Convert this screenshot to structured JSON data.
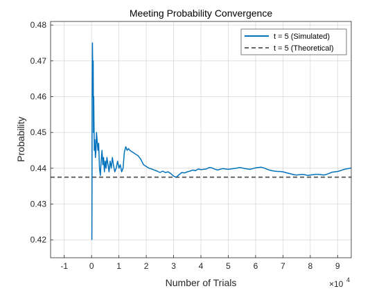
{
  "chart_data": {
    "type": "line",
    "title": "Meeting Probability Convergence",
    "xlabel": "Number of Trials",
    "ylabel": "Probability",
    "x_exponent_label": "×10",
    "x_exponent_power": "4",
    "xlim": [
      -15000,
      95000
    ],
    "ylim": [
      0.415,
      0.481
    ],
    "x_ticks": [
      -10000,
      0,
      10000,
      20000,
      30000,
      40000,
      50000,
      60000,
      70000,
      80000,
      90000
    ],
    "x_tick_labels": [
      "-1",
      "0",
      "1",
      "2",
      "3",
      "4",
      "5",
      "6",
      "7",
      "8",
      "9"
    ],
    "y_ticks": [
      0.42,
      0.43,
      0.44,
      0.45,
      0.46,
      0.47,
      0.48
    ],
    "y_tick_labels": [
      "0.42",
      "0.43",
      "0.44",
      "0.45",
      "0.46",
      "0.47",
      "0.48"
    ],
    "grid": true,
    "legend_position": "top-right",
    "series": [
      {
        "name": "t = 5 (Simulated)",
        "color": "#0072BD",
        "style": "solid",
        "x": [
          100,
          150,
          200,
          300,
          400,
          500,
          600,
          700,
          800,
          900,
          1000,
          1200,
          1400,
          1600,
          1800,
          2000,
          2300,
          2600,
          2900,
          3200,
          3500,
          3800,
          4100,
          4400,
          4700,
          5000,
          5300,
          5600,
          6000,
          6400,
          6800,
          7200,
          7600,
          8000,
          8500,
          9000,
          9500,
          10000,
          10500,
          11000,
          11500,
          12000,
          12500,
          13000,
          13500,
          14000,
          15000,
          16000,
          17000,
          18000,
          19000,
          20000,
          21000,
          22000,
          23000,
          24000,
          25000,
          26000,
          27000,
          28000,
          29000,
          30000,
          31000,
          32000,
          33000,
          34000,
          35000,
          36000,
          37000,
          38000,
          39000,
          40000,
          41000,
          42000,
          43000,
          44000,
          45000,
          46000,
          47000,
          48000,
          49000,
          50000,
          51000,
          52000,
          53000,
          54000,
          55000,
          56000,
          57000,
          58000,
          59000,
          60000,
          61000,
          62000,
          63000,
          64000,
          65000,
          66000,
          67000,
          68000,
          69000,
          70000,
          71000,
          72000,
          73000,
          74000,
          75000,
          76000,
          77000,
          78000,
          79000,
          80000,
          81000,
          82000,
          83000,
          84000,
          85000,
          86000,
          87000,
          88000,
          89000,
          90000,
          91000,
          92000,
          93000,
          94000,
          95000
        ],
        "y": [
          0.42,
          0.435,
          0.46,
          0.475,
          0.468,
          0.46,
          0.47,
          0.45,
          0.46,
          0.452,
          0.445,
          0.448,
          0.443,
          0.445,
          0.45,
          0.448,
          0.445,
          0.447,
          0.44,
          0.438,
          0.442,
          0.445,
          0.441,
          0.443,
          0.439,
          0.442,
          0.44,
          0.443,
          0.441,
          0.439,
          0.442,
          0.44,
          0.443,
          0.441,
          0.439,
          0.44,
          0.442,
          0.44,
          0.441,
          0.439,
          0.44,
          0.4445,
          0.446,
          0.445,
          0.4455,
          0.445,
          0.4445,
          0.444,
          0.4435,
          0.4425,
          0.441,
          0.4405,
          0.44,
          0.4398,
          0.4395,
          0.4392,
          0.4388,
          0.4392,
          0.4388,
          0.439,
          0.4385,
          0.4378,
          0.4375,
          0.4382,
          0.4388,
          0.4387,
          0.439,
          0.4392,
          0.4395,
          0.4393,
          0.4398,
          0.4396,
          0.4397,
          0.4398,
          0.4402,
          0.4401,
          0.4398,
          0.4395,
          0.4397,
          0.4399,
          0.4398,
          0.4397,
          0.4398,
          0.4399,
          0.44,
          0.4402,
          0.4401,
          0.4399,
          0.4398,
          0.4397,
          0.4399,
          0.4401,
          0.4402,
          0.4403,
          0.4401,
          0.4398,
          0.4395,
          0.4393,
          0.4392,
          0.4391,
          0.4391,
          0.439,
          0.4388,
          0.4386,
          0.4384,
          0.4382,
          0.4381,
          0.4382,
          0.4383,
          0.4382,
          0.438,
          0.4381,
          0.4382,
          0.4383,
          0.4383,
          0.4382,
          0.4381,
          0.4383,
          0.4386,
          0.4389,
          0.439,
          0.4391,
          0.4393,
          0.4396,
          0.4398,
          0.4399,
          0.4401
        ]
      },
      {
        "name": "t = 5 (Theoretical)",
        "color": "#666666",
        "style": "dashed",
        "x": [
          -15000,
          95000
        ],
        "y": [
          0.4375,
          0.4375
        ]
      }
    ]
  }
}
